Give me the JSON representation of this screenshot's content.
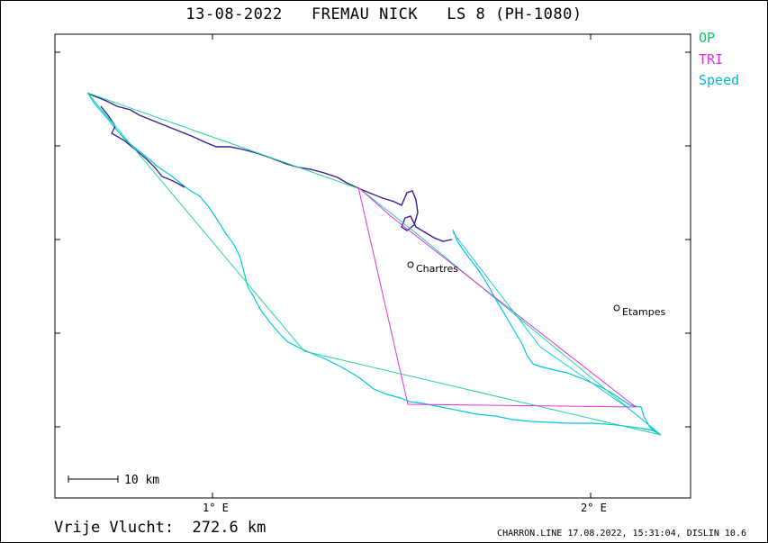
{
  "title": "13-08-2022   FREMAU NICK   LS 8 (PH-1080)",
  "legend": {
    "op": {
      "label": "OP",
      "color": "#00cc66"
    },
    "tri": {
      "label": "TRI",
      "color": "#dd33dd"
    },
    "speed": {
      "label": "Speed",
      "color": "#00bbcc"
    }
  },
  "axis": {
    "x_ticks": [
      "1° E",
      "2° E"
    ]
  },
  "places": [
    {
      "name": "Chartres"
    },
    {
      "name": "Etampes"
    }
  ],
  "scale_bar": {
    "label": "10 km"
  },
  "footer": {
    "distance": "Vrije Vlucht:  272.6 km",
    "credit": "CHARRON.LINE 17.08.2022, 15:31:04, DISLIN 10.6"
  }
}
